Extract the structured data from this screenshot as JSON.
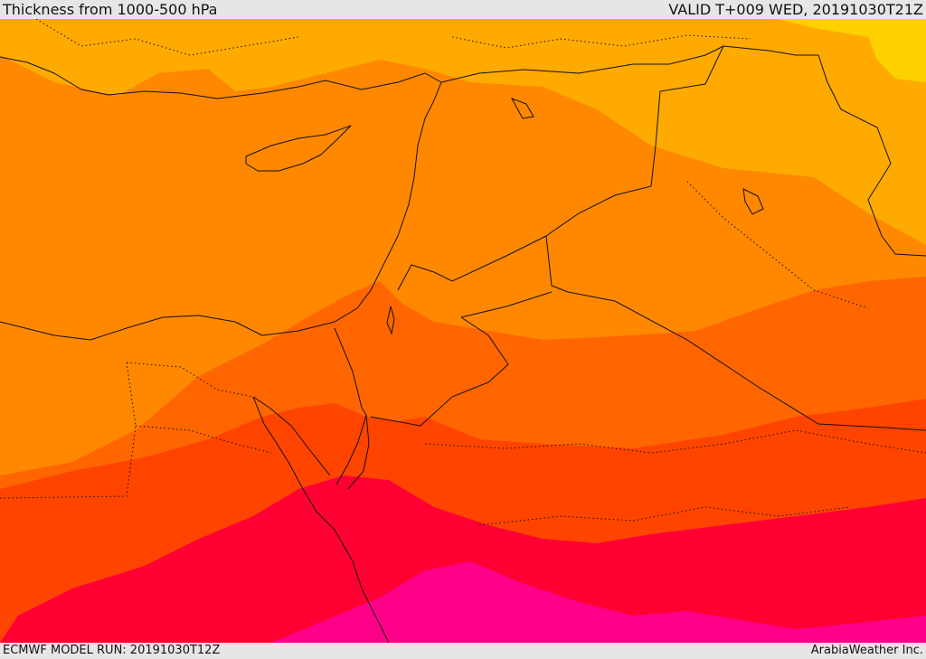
{
  "header": {
    "title": "Thickness from 1000-500 hPa",
    "valid": "VALID T+009 WED, 20191030T21Z"
  },
  "footer": {
    "model_run": "ECMWF MODEL RUN: 20191030T12Z",
    "credit": "ArabiaWeather Inc."
  },
  "map": {
    "field": "1000-500 hPa thickness",
    "shading_bands": [
      {
        "name": "band-1",
        "color": "#ffd000"
      },
      {
        "name": "band-2",
        "color": "#ffaa00"
      },
      {
        "name": "band-3",
        "color": "#ff8800"
      },
      {
        "name": "band-4",
        "color": "#ff6600"
      },
      {
        "name": "band-5",
        "color": "#ff4400"
      },
      {
        "name": "band-6",
        "color": "#ff0033"
      },
      {
        "name": "band-7",
        "color": "#ff0088"
      }
    ]
  }
}
